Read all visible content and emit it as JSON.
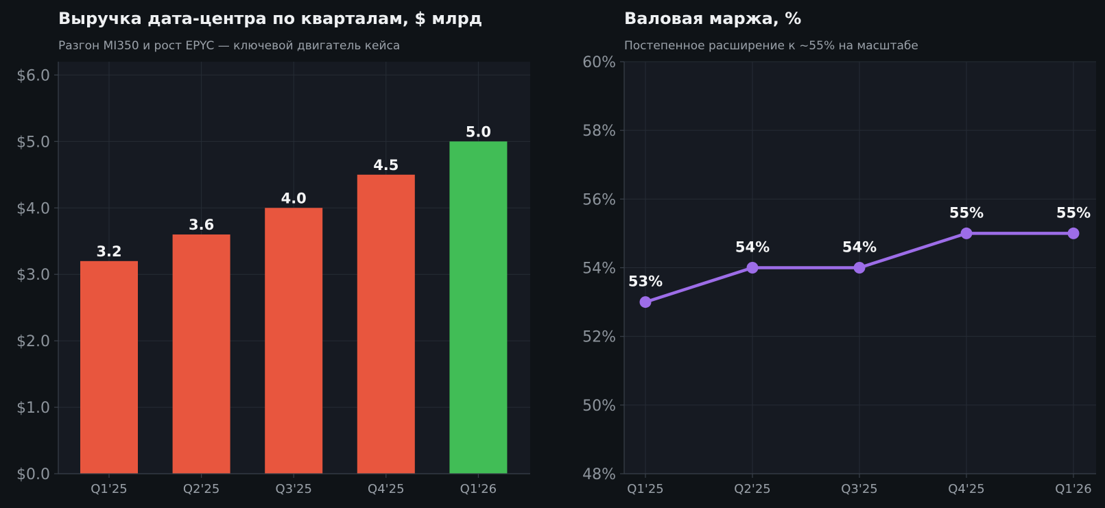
{
  "colors": {
    "page_bg": "#0f1317",
    "plot_bg": "#161a22",
    "bar_default": "#e8563e",
    "bar_highlight": "#41bd56",
    "line": "#9d6de8"
  },
  "chart_data": [
    {
      "type": "bar",
      "title": "Выручка дата-центра по кварталам, $ млрд",
      "subtitle": "Разгон MI350 и рост EPYC — ключевой двигатель кейса",
      "categories": [
        "Q1'25",
        "Q2'25",
        "Q3'25",
        "Q4'25",
        "Q1'26"
      ],
      "values": [
        3.2,
        3.6,
        4.0,
        4.5,
        5.0
      ],
      "data_labels": [
        "3.2",
        "3.6",
        "4.0",
        "4.5",
        "5.0"
      ],
      "highlight_index": 4,
      "ylim": [
        0,
        6.2
      ],
      "yticks": [
        0,
        1,
        2,
        3,
        4,
        5,
        6
      ],
      "ytick_labels": [
        "$0.0",
        "$1.0",
        "$2.0",
        "$3.0",
        "$4.0",
        "$5.0",
        "$6.0"
      ],
      "grid": true
    },
    {
      "type": "line",
      "title": "Валовая маржа, %",
      "subtitle": "Постепенное расширение к ~55% на масштабе",
      "categories": [
        "Q1'25",
        "Q2'25",
        "Q3'25",
        "Q4'25",
        "Q1'26"
      ],
      "values": [
        53,
        54,
        54,
        55,
        55
      ],
      "data_labels": [
        "53%",
        "54%",
        "54%",
        "55%",
        "55%"
      ],
      "ylim": [
        48,
        60
      ],
      "yticks": [
        48,
        50,
        52,
        54,
        56,
        58,
        60
      ],
      "ytick_labels": [
        "48%",
        "50%",
        "52%",
        "54%",
        "56%",
        "58%",
        "60%"
      ],
      "grid": true
    }
  ]
}
